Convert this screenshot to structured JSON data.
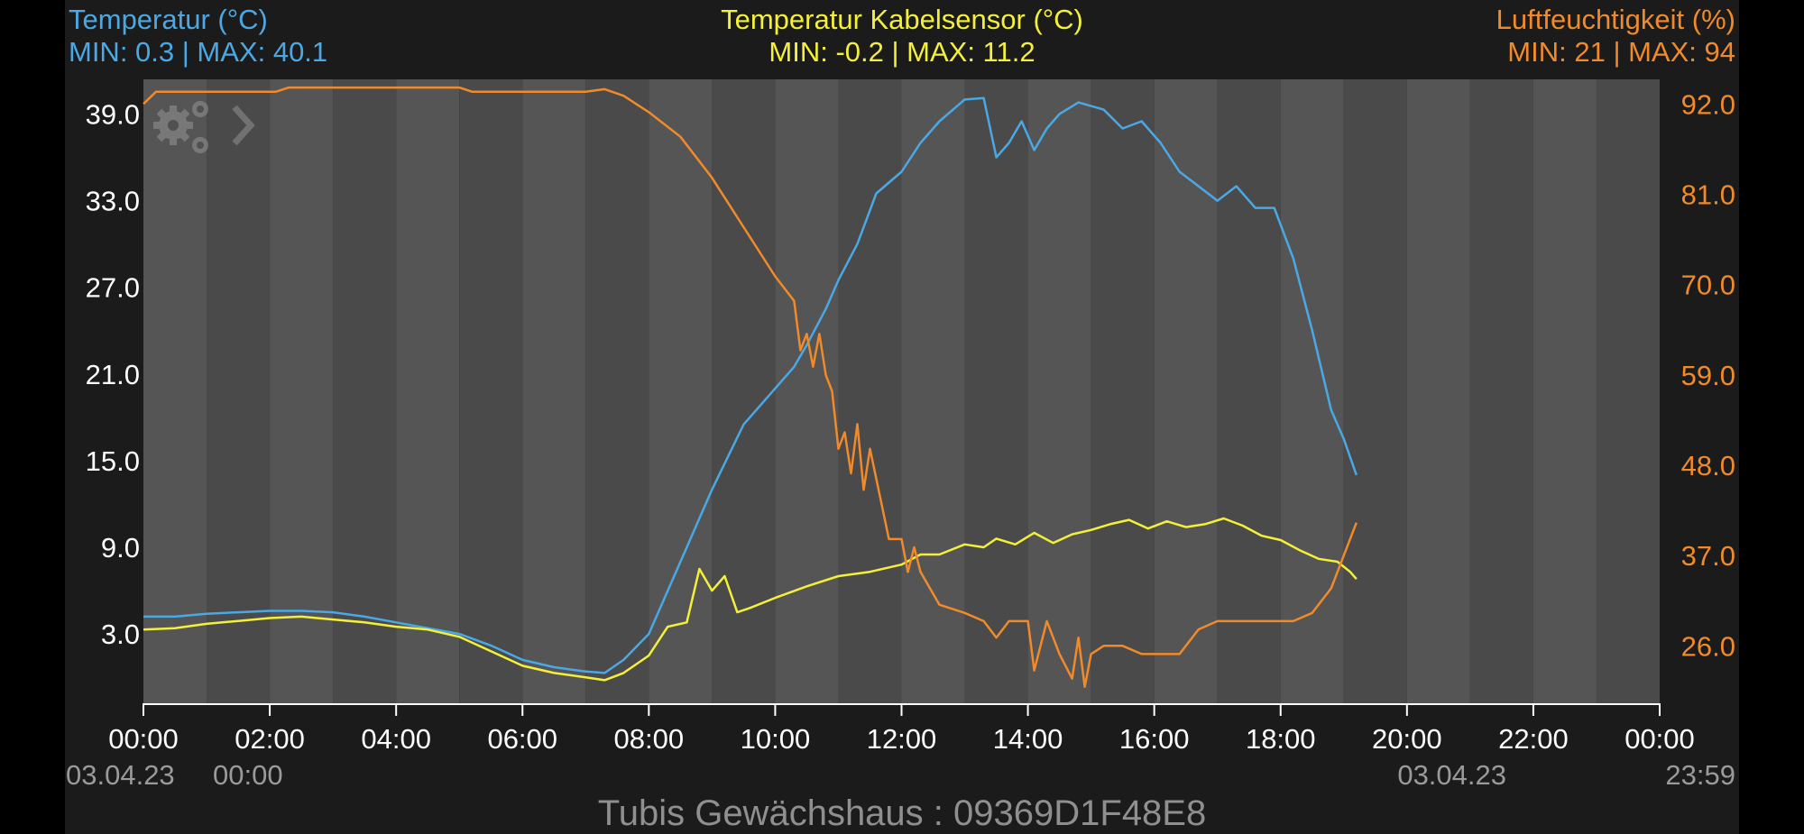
{
  "colors": {
    "temperature": "#4aa8e4",
    "cable": "#f4f03a",
    "humidity": "#f08a2a",
    "panel": "#1b1b1b",
    "stripe_light": "#555555",
    "stripe_dark": "#4a4a4a",
    "axis_text": "#ffffff",
    "footer_text": "#9a9a9a"
  },
  "header": {
    "left_title": "Temperatur (°C)",
    "left_range": "MIN: 0.3 | MAX: 40.1",
    "mid_title": "Temperatur Kabelsensor (°C)",
    "mid_range": "MIN: -0.2 | MAX: 11.2",
    "right_title": "Luftfeuchtigkeit (%)",
    "right_range": "MIN: 21 | MAX: 94"
  },
  "footer": {
    "start_date": "03.04.23",
    "start_time": "00:00",
    "end_date": "03.04.23",
    "end_time": "23:59",
    "title": "Tubis Gewächshaus : 09369D1F48E8"
  },
  "toolbar": {
    "settings_icon": "gears-icon",
    "next_icon": "chevron-right-icon"
  },
  "chart_data": {
    "type": "line",
    "x_unit": "hours",
    "xlim": [
      0,
      24
    ],
    "x_ticks": [
      "00:00",
      "02:00",
      "04:00",
      "06:00",
      "08:00",
      "10:00",
      "12:00",
      "14:00",
      "16:00",
      "18:00",
      "20:00",
      "22:00",
      "00:00"
    ],
    "y_left": {
      "ticks": [
        "3.0",
        "9.0",
        "15.0",
        "21.0",
        "27.0",
        "33.0",
        "39.0"
      ],
      "ylim": [
        -1.8,
        41.4
      ]
    },
    "y_right": {
      "ticks": [
        "26.0",
        "37.0",
        "48.0",
        "59.0",
        "70.0",
        "81.0",
        "92.0"
      ],
      "ylim": [
        19.0,
        95.0
      ]
    },
    "grid": "alternating vertical bands",
    "series": [
      {
        "name": "Temperatur (°C)",
        "axis": "left",
        "color_key": "temperature",
        "x": [
          0,
          0.5,
          1,
          1.5,
          2,
          2.5,
          3,
          3.5,
          4,
          4.5,
          5,
          5.5,
          6,
          6.5,
          7,
          7.3,
          7.6,
          8,
          8.5,
          9,
          9.5,
          10,
          10.3,
          10.5,
          10.8,
          11,
          11.3,
          11.6,
          12,
          12.3,
          12.6,
          13,
          13.3,
          13.5,
          13.7,
          13.9,
          14.1,
          14.3,
          14.5,
          14.8,
          15.2,
          15.5,
          15.8,
          16.1,
          16.4,
          16.7,
          17,
          17.3,
          17.6,
          17.9,
          18.2,
          18.5,
          18.8,
          19.0,
          19.2
        ],
        "y": [
          4.2,
          4.2,
          4.4,
          4.5,
          4.6,
          4.6,
          4.5,
          4.2,
          3.8,
          3.4,
          3.0,
          2.2,
          1.2,
          0.7,
          0.4,
          0.3,
          1.2,
          3.0,
          8.0,
          13.0,
          17.5,
          20.0,
          21.5,
          23.0,
          25.5,
          27.5,
          30.0,
          33.5,
          35.0,
          37.0,
          38.5,
          40.0,
          40.1,
          36.0,
          37.0,
          38.5,
          36.5,
          38.0,
          39.0,
          39.8,
          39.3,
          38.0,
          38.5,
          37.0,
          35.0,
          34.0,
          33.0,
          34.0,
          32.5,
          32.5,
          29.0,
          24.0,
          18.5,
          16.5,
          14.0
        ]
      },
      {
        "name": "Temperatur Kabelsensor (°C)",
        "axis": "left",
        "color_key": "cable",
        "x": [
          0,
          0.5,
          1,
          1.5,
          2,
          2.5,
          3,
          3.5,
          4,
          4.5,
          5,
          5.5,
          6,
          6.5,
          7,
          7.3,
          7.6,
          8,
          8.3,
          8.6,
          8.8,
          9.0,
          9.2,
          9.4,
          9.6,
          10,
          10.5,
          11,
          11.5,
          12,
          12.3,
          12.6,
          13,
          13.3,
          13.5,
          13.8,
          14.1,
          14.4,
          14.7,
          15.0,
          15.3,
          15.6,
          15.9,
          16.2,
          16.5,
          16.8,
          17.1,
          17.4,
          17.7,
          18.0,
          18.3,
          18.6,
          18.9,
          19.1,
          19.2
        ],
        "y": [
          3.3,
          3.4,
          3.7,
          3.9,
          4.1,
          4.2,
          4.0,
          3.8,
          3.5,
          3.3,
          2.8,
          1.8,
          0.8,
          0.3,
          0.0,
          -0.2,
          0.3,
          1.5,
          3.5,
          3.8,
          7.5,
          6.0,
          7.0,
          4.5,
          4.8,
          5.5,
          6.3,
          7.0,
          7.3,
          7.8,
          8.5,
          8.5,
          9.2,
          9.0,
          9.6,
          9.2,
          10.0,
          9.3,
          9.9,
          10.2,
          10.6,
          10.9,
          10.3,
          10.8,
          10.4,
          10.6,
          11.0,
          10.5,
          9.8,
          9.5,
          8.8,
          8.2,
          8.0,
          7.3,
          6.8
        ]
      },
      {
        "name": "Luftfeuchtigkeit (%)",
        "axis": "right",
        "color_key": "humidity",
        "x": [
          0,
          0.2,
          2.1,
          2.3,
          5.0,
          5.2,
          7.0,
          7.3,
          7.6,
          8,
          8.5,
          9,
          9.5,
          10,
          10.3,
          10.4,
          10.5,
          10.6,
          10.7,
          10.8,
          10.9,
          11.0,
          11.1,
          11.2,
          11.3,
          11.4,
          11.5,
          11.8,
          12.0,
          12.1,
          12.2,
          12.3,
          12.6,
          13,
          13.3,
          13.5,
          13.7,
          14.0,
          14.1,
          14.3,
          14.5,
          14.7,
          14.8,
          14.9,
          15.0,
          15.2,
          15.5,
          15.8,
          16.1,
          16.4,
          16.7,
          17.0,
          17.3,
          17.6,
          17.9,
          18.2,
          18.5,
          18.8,
          19.0,
          19.2
        ],
        "y": [
          92,
          93.5,
          93.5,
          94,
          94,
          93.5,
          93.5,
          93.8,
          93.0,
          91,
          88,
          83,
          77,
          71,
          68,
          62,
          64,
          60,
          64,
          59,
          57,
          50,
          52,
          47,
          53,
          45,
          50,
          39,
          39,
          35,
          38,
          35,
          31,
          30,
          29,
          27,
          29,
          29,
          23,
          29,
          25,
          22,
          27,
          21,
          25,
          26,
          26,
          25,
          25,
          25,
          28,
          29,
          29,
          29,
          29,
          29,
          30,
          33,
          37,
          41
        ]
      }
    ]
  }
}
